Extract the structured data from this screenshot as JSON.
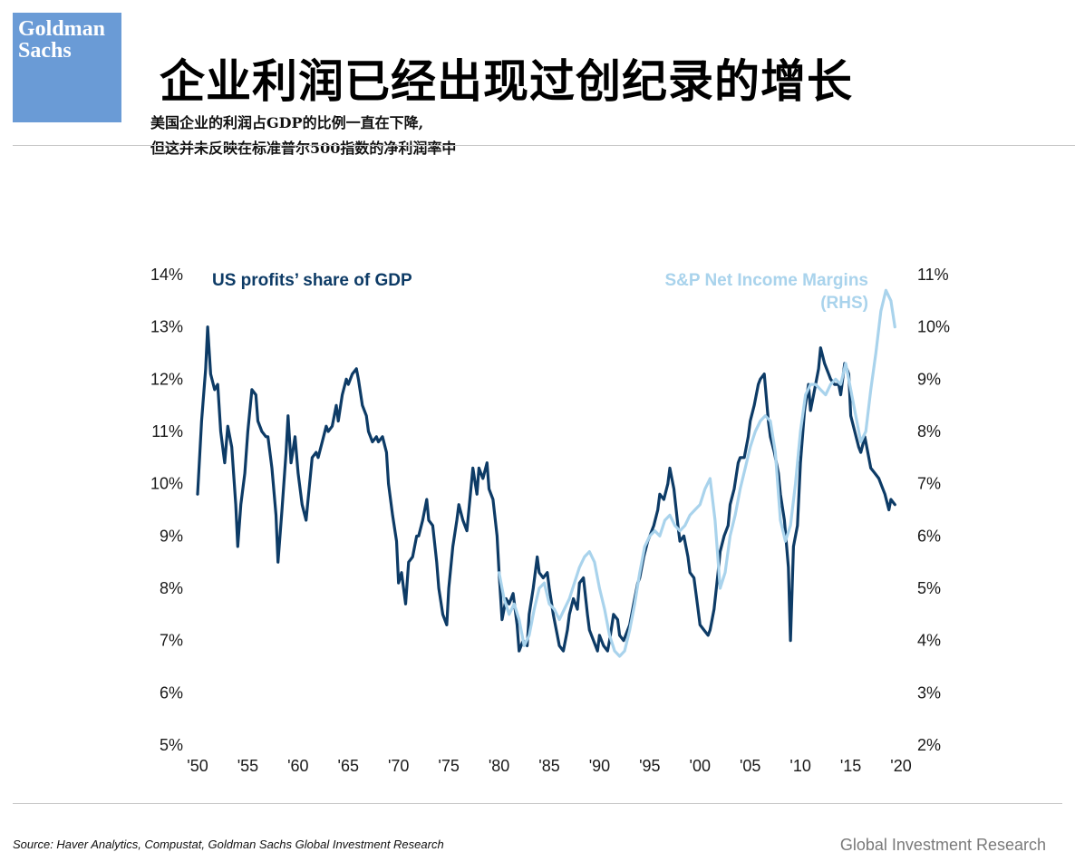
{
  "logo": {
    "line1": "Goldman",
    "line2": "Sachs",
    "bg": "#6a9bd6"
  },
  "title": "企业利润已经出现过创纪录的增长",
  "subtitle": {
    "line1": "美国企业的利润占GDP的比例一直在下降,",
    "line2": "但这并未反映在标准普尔500指数的净利润率中"
  },
  "footer": {
    "source": "Source: Haver Analytics, Compustat, Goldman Sachs Global Investment Research",
    "brand": "Global Investment Research"
  },
  "chart_data": {
    "type": "line",
    "xlabel": "",
    "xlim": [
      1950,
      2020
    ],
    "x_ticks": [
      1950,
      1955,
      1960,
      1965,
      1970,
      1975,
      1980,
      1985,
      1990,
      1995,
      2000,
      2005,
      2010,
      2015,
      2020
    ],
    "x_tick_labels": [
      "'50",
      "'55",
      "'60",
      "'65",
      "'70",
      "'75",
      "'80",
      "'85",
      "'90",
      "'95",
      "'00",
      "'05",
      "'10",
      "'15",
      "'20"
    ],
    "y_left": {
      "lim": [
        5,
        14
      ],
      "ticks": [
        5,
        6,
        7,
        8,
        9,
        10,
        11,
        12,
        13,
        14
      ],
      "tick_labels": [
        "5%",
        "6%",
        "7%",
        "8%",
        "9%",
        "10%",
        "11%",
        "12%",
        "13%",
        "14%"
      ]
    },
    "y_right": {
      "lim": [
        2,
        11
      ],
      "ticks": [
        2,
        3,
        4,
        5,
        6,
        7,
        8,
        9,
        10,
        11
      ],
      "tick_labels": [
        "2%",
        "3%",
        "4%",
        "5%",
        "6%",
        "7%",
        "8%",
        "9%",
        "10%",
        "11%"
      ]
    },
    "grid": false,
    "series": [
      {
        "name": "US profits’ share of GDP",
        "axis": "left",
        "color": "#0d3b66",
        "label_lines": [
          "US profits’ share of GDP"
        ],
        "label_anchor": "start",
        "points": [
          [
            1950,
            9.8
          ],
          [
            1950.4,
            11.2
          ],
          [
            1950.8,
            12.2
          ],
          [
            1951,
            13.0
          ],
          [
            1951.3,
            12.1
          ],
          [
            1951.7,
            11.8
          ],
          [
            1952,
            11.9
          ],
          [
            1952.3,
            11.0
          ],
          [
            1952.7,
            10.4
          ],
          [
            1953,
            11.1
          ],
          [
            1953.4,
            10.7
          ],
          [
            1953.8,
            9.6
          ],
          [
            1954,
            8.8
          ],
          [
            1954.3,
            9.6
          ],
          [
            1954.7,
            10.2
          ],
          [
            1955,
            11.0
          ],
          [
            1955.4,
            11.8
          ],
          [
            1955.8,
            11.7
          ],
          [
            1956,
            11.2
          ],
          [
            1956.4,
            11.0
          ],
          [
            1956.8,
            10.9
          ],
          [
            1957,
            10.9
          ],
          [
            1957.4,
            10.3
          ],
          [
            1957.8,
            9.4
          ],
          [
            1958,
            8.5
          ],
          [
            1958.4,
            9.5
          ],
          [
            1958.8,
            10.6
          ],
          [
            1959,
            11.3
          ],
          [
            1959.3,
            10.4
          ],
          [
            1959.7,
            10.9
          ],
          [
            1960,
            10.2
          ],
          [
            1960.4,
            9.6
          ],
          [
            1960.8,
            9.3
          ],
          [
            1961,
            9.7
          ],
          [
            1961.4,
            10.5
          ],
          [
            1961.8,
            10.6
          ],
          [
            1962,
            10.5
          ],
          [
            1962.4,
            10.8
          ],
          [
            1962.8,
            11.1
          ],
          [
            1963,
            11.0
          ],
          [
            1963.4,
            11.1
          ],
          [
            1963.8,
            11.5
          ],
          [
            1964,
            11.2
          ],
          [
            1964.4,
            11.7
          ],
          [
            1964.8,
            12.0
          ],
          [
            1965,
            11.9
          ],
          [
            1965.4,
            12.1
          ],
          [
            1965.8,
            12.2
          ],
          [
            1966,
            12.0
          ],
          [
            1966.4,
            11.5
          ],
          [
            1966.8,
            11.3
          ],
          [
            1967,
            11.0
          ],
          [
            1967.4,
            10.8
          ],
          [
            1967.8,
            10.9
          ],
          [
            1968,
            10.8
          ],
          [
            1968.4,
            10.9
          ],
          [
            1968.8,
            10.6
          ],
          [
            1969,
            10.0
          ],
          [
            1969.4,
            9.4
          ],
          [
            1969.8,
            8.9
          ],
          [
            1970,
            8.1
          ],
          [
            1970.3,
            8.3
          ],
          [
            1970.7,
            7.7
          ],
          [
            1971,
            8.5
          ],
          [
            1971.4,
            8.6
          ],
          [
            1971.8,
            9.0
          ],
          [
            1972,
            9.0
          ],
          [
            1972.4,
            9.3
          ],
          [
            1972.8,
            9.7
          ],
          [
            1973,
            9.3
          ],
          [
            1973.4,
            9.2
          ],
          [
            1973.8,
            8.5
          ],
          [
            1974,
            8.0
          ],
          [
            1974.4,
            7.5
          ],
          [
            1974.8,
            7.3
          ],
          [
            1975,
            8.0
          ],
          [
            1975.4,
            8.8
          ],
          [
            1975.8,
            9.3
          ],
          [
            1976,
            9.6
          ],
          [
            1976.4,
            9.3
          ],
          [
            1976.8,
            9.1
          ],
          [
            1977,
            9.5
          ],
          [
            1977.4,
            10.3
          ],
          [
            1977.8,
            9.8
          ],
          [
            1978,
            10.3
          ],
          [
            1978.4,
            10.1
          ],
          [
            1978.8,
            10.4
          ],
          [
            1979,
            9.9
          ],
          [
            1979.4,
            9.7
          ],
          [
            1979.8,
            9.0
          ],
          [
            1980,
            8.3
          ],
          [
            1980.3,
            7.4
          ],
          [
            1980.7,
            7.8
          ],
          [
            1981,
            7.7
          ],
          [
            1981.4,
            7.9
          ],
          [
            1981.8,
            7.3
          ],
          [
            1982,
            6.8
          ],
          [
            1982.4,
            7.0
          ],
          [
            1982.8,
            6.9
          ],
          [
            1983,
            7.5
          ],
          [
            1983.4,
            8.0
          ],
          [
            1983.8,
            8.6
          ],
          [
            1984,
            8.3
          ],
          [
            1984.4,
            8.2
          ],
          [
            1984.8,
            8.3
          ],
          [
            1985,
            8.0
          ],
          [
            1985.4,
            7.5
          ],
          [
            1985.8,
            7.1
          ],
          [
            1986,
            6.9
          ],
          [
            1986.4,
            6.8
          ],
          [
            1986.8,
            7.2
          ],
          [
            1987,
            7.5
          ],
          [
            1987.4,
            7.8
          ],
          [
            1987.8,
            7.6
          ],
          [
            1988,
            8.1
          ],
          [
            1988.4,
            8.2
          ],
          [
            1988.8,
            7.5
          ],
          [
            1989,
            7.2
          ],
          [
            1989.4,
            7.0
          ],
          [
            1989.8,
            6.8
          ],
          [
            1990,
            7.1
          ],
          [
            1990.4,
            6.9
          ],
          [
            1990.8,
            6.8
          ],
          [
            1991,
            7.0
          ],
          [
            1991.4,
            7.5
          ],
          [
            1991.8,
            7.4
          ],
          [
            1992,
            7.1
          ],
          [
            1992.4,
            7.0
          ],
          [
            1992.8,
            7.2
          ],
          [
            1993,
            7.3
          ],
          [
            1993.4,
            7.7
          ],
          [
            1993.8,
            8.1
          ],
          [
            1994,
            8.2
          ],
          [
            1994.4,
            8.6
          ],
          [
            1994.8,
            8.9
          ],
          [
            1995,
            9.0
          ],
          [
            1995.4,
            9.2
          ],
          [
            1995.8,
            9.5
          ],
          [
            1996,
            9.8
          ],
          [
            1996.4,
            9.7
          ],
          [
            1996.8,
            10.0
          ],
          [
            1997,
            10.3
          ],
          [
            1997.4,
            9.9
          ],
          [
            1997.8,
            9.2
          ],
          [
            1998,
            8.9
          ],
          [
            1998.4,
            9.0
          ],
          [
            1998.8,
            8.6
          ],
          [
            1999,
            8.3
          ],
          [
            1999.4,
            8.2
          ],
          [
            1999.8,
            7.6
          ],
          [
            2000,
            7.3
          ],
          [
            2000.4,
            7.2
          ],
          [
            2000.8,
            7.1
          ],
          [
            2001,
            7.2
          ],
          [
            2001.4,
            7.6
          ],
          [
            2001.8,
            8.3
          ],
          [
            2002,
            8.7
          ],
          [
            2002.4,
            9.0
          ],
          [
            2002.8,
            9.2
          ],
          [
            2003,
            9.6
          ],
          [
            2003.4,
            9.9
          ],
          [
            2003.8,
            10.4
          ],
          [
            2004,
            10.5
          ],
          [
            2004.4,
            10.5
          ],
          [
            2004.8,
            10.9
          ],
          [
            2005,
            11.2
          ],
          [
            2005.4,
            11.5
          ],
          [
            2005.8,
            11.9
          ],
          [
            2006,
            12.0
          ],
          [
            2006.4,
            12.1
          ],
          [
            2006.8,
            11.2
          ],
          [
            2007,
            10.9
          ],
          [
            2007.4,
            10.6
          ],
          [
            2007.8,
            10.2
          ],
          [
            2008,
            9.8
          ],
          [
            2008.4,
            9.3
          ],
          [
            2008.8,
            8.4
          ],
          [
            2009,
            7.0
          ],
          [
            2009.3,
            8.8
          ],
          [
            2009.7,
            9.2
          ],
          [
            2010,
            10.4
          ],
          [
            2010.4,
            11.4
          ],
          [
            2010.8,
            11.9
          ],
          [
            2011,
            11.4
          ],
          [
            2011.4,
            11.8
          ],
          [
            2011.8,
            12.2
          ],
          [
            2012,
            12.6
          ],
          [
            2012.4,
            12.3
          ],
          [
            2012.8,
            12.1
          ],
          [
            2013,
            12.0
          ],
          [
            2013.4,
            11.9
          ],
          [
            2013.8,
            11.9
          ],
          [
            2014,
            11.7
          ],
          [
            2014.4,
            12.3
          ],
          [
            2014.8,
            12.1
          ],
          [
            2015,
            11.3
          ],
          [
            2015.4,
            11.0
          ],
          [
            2015.8,
            10.7
          ],
          [
            2016,
            10.6
          ],
          [
            2016.4,
            10.9
          ],
          [
            2016.8,
            10.5
          ],
          [
            2017,
            10.3
          ],
          [
            2017.4,
            10.2
          ],
          [
            2017.8,
            10.1
          ],
          [
            2018,
            10.0
          ],
          [
            2018.4,
            9.8
          ],
          [
            2018.8,
            9.5
          ],
          [
            2019,
            9.7
          ],
          [
            2019.4,
            9.6
          ]
        ]
      },
      {
        "name": "S&P Net Income Margins (RHS)",
        "axis": "right",
        "color": "#a9d3ec",
        "label_lines": [
          "S&P Net Income Margins",
          "(RHS)"
        ],
        "label_anchor": "end",
        "points": [
          [
            1980,
            5.3
          ],
          [
            1980.5,
            4.8
          ],
          [
            1981,
            4.5
          ],
          [
            1981.5,
            4.7
          ],
          [
            1982,
            4.4
          ],
          [
            1982.5,
            3.9
          ],
          [
            1983,
            4.1
          ],
          [
            1983.5,
            4.6
          ],
          [
            1984,
            5.0
          ],
          [
            1984.5,
            5.1
          ],
          [
            1985,
            4.7
          ],
          [
            1985.5,
            4.6
          ],
          [
            1986,
            4.4
          ],
          [
            1986.5,
            4.6
          ],
          [
            1987,
            4.8
          ],
          [
            1987.5,
            5.1
          ],
          [
            1988,
            5.4
          ],
          [
            1988.5,
            5.6
          ],
          [
            1989,
            5.7
          ],
          [
            1989.5,
            5.5
          ],
          [
            1990,
            5.0
          ],
          [
            1990.5,
            4.6
          ],
          [
            1991,
            4.1
          ],
          [
            1991.5,
            3.8
          ],
          [
            1992,
            3.7
          ],
          [
            1992.5,
            3.8
          ],
          [
            1993,
            4.2
          ],
          [
            1993.5,
            4.7
          ],
          [
            1994,
            5.3
          ],
          [
            1994.5,
            5.8
          ],
          [
            1995,
            6.0
          ],
          [
            1995.5,
            6.1
          ],
          [
            1996,
            6.0
          ],
          [
            1996.5,
            6.3
          ],
          [
            1997,
            6.4
          ],
          [
            1997.5,
            6.2
          ],
          [
            1998,
            6.1
          ],
          [
            1998.5,
            6.2
          ],
          [
            1999,
            6.4
          ],
          [
            1999.5,
            6.5
          ],
          [
            2000,
            6.6
          ],
          [
            2000.5,
            6.9
          ],
          [
            2001,
            7.1
          ],
          [
            2001.5,
            6.3
          ],
          [
            2002,
            5.0
          ],
          [
            2002.5,
            5.3
          ],
          [
            2003,
            6.0
          ],
          [
            2003.5,
            6.4
          ],
          [
            2004,
            6.9
          ],
          [
            2004.5,
            7.3
          ],
          [
            2005,
            7.7
          ],
          [
            2005.5,
            8.0
          ],
          [
            2006,
            8.2
          ],
          [
            2006.5,
            8.3
          ],
          [
            2007,
            8.2
          ],
          [
            2007.5,
            7.6
          ],
          [
            2008,
            6.3
          ],
          [
            2008.5,
            5.9
          ],
          [
            2009,
            6.2
          ],
          [
            2009.5,
            7.0
          ],
          [
            2010,
            8.0
          ],
          [
            2010.5,
            8.7
          ],
          [
            2011,
            8.9
          ],
          [
            2011.5,
            8.9
          ],
          [
            2012,
            8.8
          ],
          [
            2012.5,
            8.7
          ],
          [
            2013,
            8.9
          ],
          [
            2013.5,
            9.0
          ],
          [
            2014,
            8.9
          ],
          [
            2014.5,
            9.3
          ],
          [
            2015,
            8.8
          ],
          [
            2015.5,
            8.3
          ],
          [
            2016,
            7.8
          ],
          [
            2016.5,
            8.0
          ],
          [
            2017,
            8.8
          ],
          [
            2017.5,
            9.5
          ],
          [
            2018,
            10.3
          ],
          [
            2018.5,
            10.7
          ],
          [
            2019,
            10.5
          ],
          [
            2019.4,
            10.0
          ]
        ]
      }
    ]
  }
}
